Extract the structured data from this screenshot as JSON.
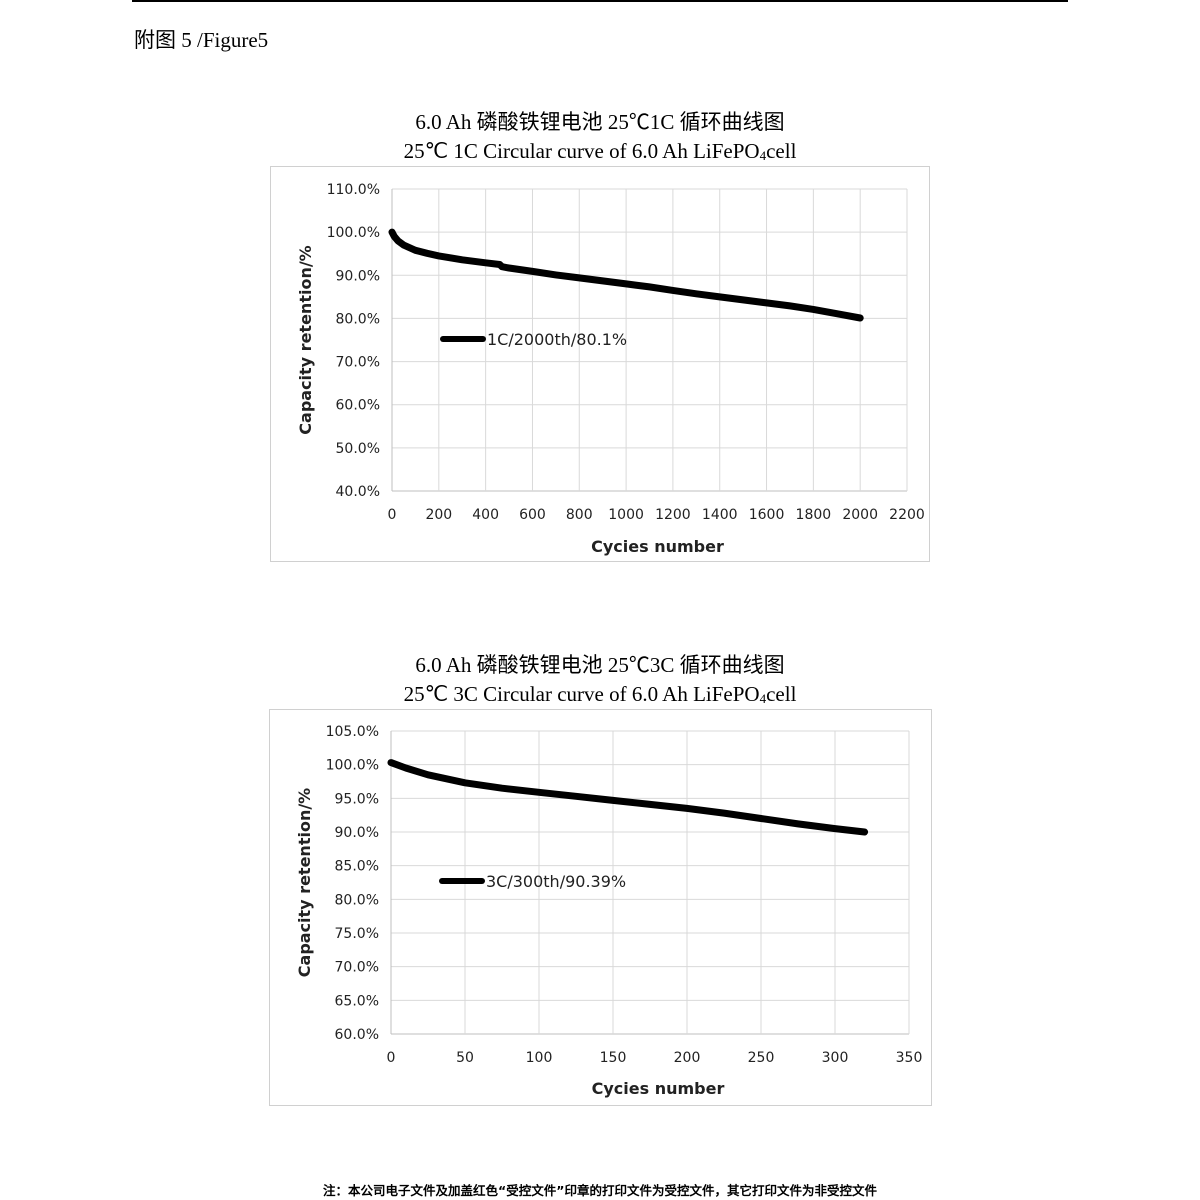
{
  "figure_label": "附图 5 /Figure5",
  "footer_note": "注：本公司电子文件及加盖红色“受控文件”印章的打印文件为受控文件，其它打印文件为非受控文件",
  "chart_data": [
    {
      "type": "line",
      "title_cn": "6.0 Ah 磷酸铁锂电池 25℃1C 循环曲线图",
      "title_en_prefix": "25℃  1C Circular curve of 6.0 Ah LiFePO",
      "title_en_sub": "4",
      "title_en_suffix": "cell",
      "xlabel": "Cycies number",
      "ylabel": "Capacity retention/%",
      "xlim": [
        0,
        2200
      ],
      "ylim": [
        0.4,
        1.1
      ],
      "xticks": [
        0,
        200,
        400,
        600,
        800,
        1000,
        1200,
        1400,
        1600,
        1800,
        2000,
        2200
      ],
      "yticks": [
        0.4,
        0.5,
        0.6,
        0.7,
        0.8,
        0.9,
        1.0,
        1.1
      ],
      "ytick_labels": [
        "40.0%",
        "50.0%",
        "60.0%",
        "70.0%",
        "80.0%",
        "90.0%",
        "100.0%",
        "110.0%"
      ],
      "grid": true,
      "legend_position": "left-middle",
      "series": [
        {
          "name": "1C/2000th/80.1%",
          "color": "#000000",
          "x": [
            0,
            10,
            25,
            50,
            100,
            150,
            200,
            300,
            400,
            460,
            470,
            500,
            600,
            700,
            800,
            900,
            1000,
            1100,
            1200,
            1300,
            1400,
            1500,
            1600,
            1700,
            1800,
            1900,
            2000
          ],
          "y": [
            1.0,
            0.99,
            0.98,
            0.97,
            0.958,
            0.951,
            0.945,
            0.936,
            0.929,
            0.925,
            0.92,
            0.917,
            0.909,
            0.901,
            0.894,
            0.887,
            0.88,
            0.873,
            0.865,
            0.857,
            0.85,
            0.843,
            0.836,
            0.829,
            0.821,
            0.811,
            0.801
          ]
        }
      ]
    },
    {
      "type": "line",
      "title_cn": "6.0 Ah 磷酸铁锂电池 25℃3C 循环曲线图",
      "title_en_prefix": "25℃  3C Circular curve of 6.0 Ah LiFePO",
      "title_en_sub": "4",
      "title_en_suffix": "cell",
      "xlabel": "Cycies number",
      "ylabel": "Capacity retention/%",
      "xlim": [
        0,
        350
      ],
      "ylim": [
        0.6,
        1.05
      ],
      "xticks": [
        0,
        50,
        100,
        150,
        200,
        250,
        300,
        350
      ],
      "yticks": [
        0.6,
        0.65,
        0.7,
        0.75,
        0.8,
        0.85,
        0.9,
        0.95,
        1.0,
        1.05
      ],
      "ytick_labels": [
        "60.0%",
        "65.0%",
        "70.0%",
        "75.0%",
        "80.0%",
        "85.0%",
        "90.0%",
        "95.0%",
        "100.0%",
        "105.0%"
      ],
      "grid": true,
      "legend_position": "left-middle",
      "series": [
        {
          "name": "3C/300th/90.39%",
          "color": "#000000",
          "x": [
            0,
            10,
            25,
            50,
            75,
            100,
            125,
            150,
            175,
            200,
            225,
            250,
            275,
            300,
            320
          ],
          "y": [
            1.003,
            0.995,
            0.985,
            0.973,
            0.965,
            0.959,
            0.953,
            0.947,
            0.941,
            0.935,
            0.928,
            0.92,
            0.912,
            0.905,
            0.9
          ]
        }
      ]
    }
  ]
}
